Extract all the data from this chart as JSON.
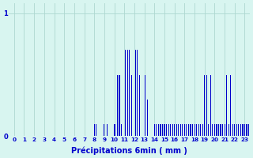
{
  "title": "",
  "xlabel": "Précipitations 6min ( mm )",
  "ylabel": "",
  "background_color": "#d8f5f0",
  "bar_color": "#0000cc",
  "grid_color": "#aed8d0",
  "axis_label_color": "#0000cc",
  "ytick_labels": [
    "0",
    "1"
  ],
  "ytick_values": [
    0,
    1
  ],
  "xtick_values": [
    0,
    1,
    2,
    3,
    4,
    5,
    6,
    7,
    8,
    9,
    10,
    11,
    12,
    13,
    14,
    15,
    16,
    17,
    18,
    19,
    20,
    21,
    22,
    23
  ],
  "ylim": [
    0,
    1.08
  ],
  "n_hours": 24,
  "intervals_per_hour": 10,
  "values": [
    0,
    0,
    0,
    0,
    0,
    0,
    0,
    0,
    0,
    0,
    0,
    0,
    0,
    0,
    0,
    0,
    0,
    0,
    0,
    0,
    0,
    0,
    0,
    0,
    0,
    0,
    0,
    0,
    0,
    0,
    0,
    0,
    0,
    0,
    0,
    0,
    0,
    0,
    0,
    0,
    0,
    0,
    0,
    0,
    0,
    0,
    0,
    0,
    0,
    0,
    0,
    0,
    0,
    0,
    0,
    0,
    0,
    0,
    0,
    0,
    0,
    0,
    0,
    0,
    0,
    0,
    0,
    0,
    0,
    0,
    0,
    0,
    0,
    0,
    0,
    0,
    0,
    0,
    0,
    0,
    0.1,
    0,
    0.1,
    0,
    0,
    0,
    0,
    0,
    0,
    0,
    0.1,
    0,
    0,
    0.1,
    0,
    0,
    0,
    0,
    0,
    0,
    0.1,
    0.1,
    0,
    0.5,
    0,
    0.5,
    0,
    0.1,
    0,
    0,
    0,
    0.7,
    0,
    0.7,
    0,
    0.7,
    0,
    0.5,
    0,
    0,
    0,
    0.7,
    0,
    0.7,
    0,
    0.5,
    0,
    0,
    0,
    0,
    0,
    0.5,
    0,
    0.3,
    0,
    0,
    0,
    0,
    0,
    0,
    0.1,
    0,
    0.1,
    0,
    0.1,
    0,
    0.1,
    0,
    0.1,
    0,
    0.1,
    0,
    0.1,
    0,
    0.1,
    0,
    0.1,
    0,
    0.1,
    0,
    0.1,
    0,
    0.1,
    0,
    0.1,
    0,
    0.1,
    0,
    0.1,
    0,
    0.1,
    0,
    0.1,
    0,
    0.1,
    0,
    0.1,
    0,
    0.1,
    0,
    0.1,
    0,
    0.1,
    0,
    0.1,
    0,
    0.1,
    0,
    0.1,
    0,
    0.5,
    0,
    0.5,
    0,
    0.1,
    0,
    0.5,
    0,
    0.1,
    0,
    0.1,
    0,
    0.1,
    0,
    0.1,
    0,
    0.1,
    0,
    0.1,
    0,
    0.1,
    0,
    0.5,
    0,
    0.1,
    0,
    0.5,
    0,
    0.1,
    0,
    0.1,
    0,
    0.1,
    0,
    0.1,
    0,
    0.1,
    0,
    0.1,
    0,
    0.1,
    0,
    0.1,
    0,
    0.1,
    0,
    0.1,
    0,
    0.1,
    0
  ]
}
